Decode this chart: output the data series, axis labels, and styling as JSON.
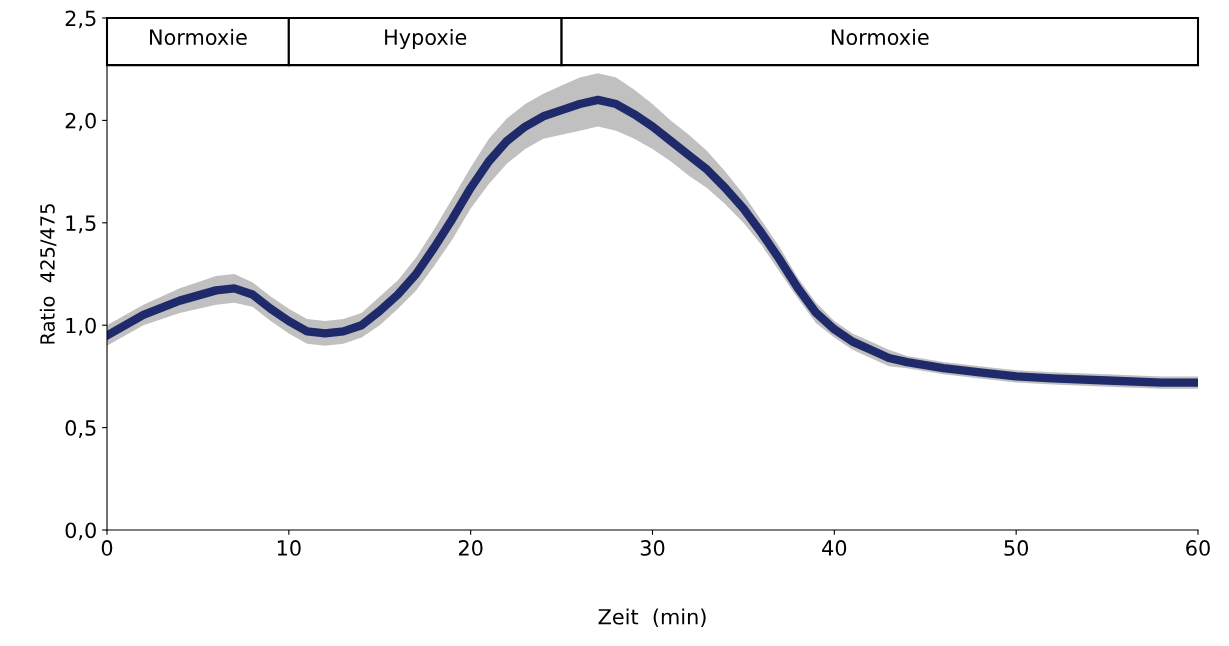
{
  "chart_data": {
    "type": "line",
    "xlabel": "Zeit  (min)",
    "ylabel": "Ratio  425/475",
    "x": [
      0,
      2,
      4,
      6,
      7,
      8,
      9,
      10,
      11,
      12,
      13,
      14,
      15,
      16,
      17,
      18,
      19,
      20,
      21,
      22,
      23,
      24,
      25,
      26,
      27,
      28,
      29,
      30,
      31,
      32,
      33,
      34,
      35,
      36,
      37,
      38,
      39,
      40,
      41,
      42,
      43,
      44,
      46,
      48,
      50,
      52,
      55,
      58,
      60
    ],
    "series": [
      {
        "color": "#1f2a6b",
        "values": [
          0.95,
          1.05,
          1.12,
          1.17,
          1.18,
          1.15,
          1.08,
          1.02,
          0.97,
          0.96,
          0.97,
          1.0,
          1.07,
          1.15,
          1.25,
          1.38,
          1.52,
          1.67,
          1.8,
          1.9,
          1.97,
          2.02,
          2.05,
          2.08,
          2.1,
          2.08,
          2.03,
          1.97,
          1.9,
          1.83,
          1.76,
          1.67,
          1.57,
          1.45,
          1.32,
          1.18,
          1.06,
          0.98,
          0.92,
          0.88,
          0.84,
          0.82,
          0.79,
          0.77,
          0.75,
          0.74,
          0.73,
          0.72,
          0.72
        ],
        "lower": [
          0.9,
          1.0,
          1.06,
          1.1,
          1.11,
          1.09,
          1.02,
          0.96,
          0.91,
          0.9,
          0.91,
          0.94,
          1.0,
          1.08,
          1.17,
          1.29,
          1.42,
          1.57,
          1.69,
          1.79,
          1.86,
          1.91,
          1.93,
          1.95,
          1.97,
          1.95,
          1.91,
          1.86,
          1.8,
          1.73,
          1.67,
          1.59,
          1.5,
          1.39,
          1.26,
          1.13,
          1.01,
          0.94,
          0.88,
          0.84,
          0.8,
          0.79,
          0.76,
          0.74,
          0.72,
          0.71,
          0.7,
          0.69,
          0.69
        ],
        "upper": [
          1.0,
          1.1,
          1.18,
          1.24,
          1.25,
          1.21,
          1.14,
          1.08,
          1.03,
          1.02,
          1.03,
          1.06,
          1.14,
          1.22,
          1.33,
          1.47,
          1.62,
          1.77,
          1.91,
          2.01,
          2.08,
          2.13,
          2.17,
          2.21,
          2.23,
          2.21,
          2.15,
          2.08,
          2.0,
          1.93,
          1.85,
          1.75,
          1.64,
          1.51,
          1.38,
          1.23,
          1.11,
          1.02,
          0.96,
          0.92,
          0.88,
          0.85,
          0.82,
          0.8,
          0.78,
          0.77,
          0.76,
          0.75,
          0.75
        ]
      }
    ],
    "xlim": [
      0,
      60
    ],
    "xticks": [
      0,
      10,
      20,
      30,
      40,
      50,
      60
    ],
    "ylim": [
      0,
      2.5
    ],
    "yticks": [
      {
        "value": 0,
        "label": "0,0"
      },
      {
        "value": 0.5,
        "label": "0,5"
      },
      {
        "value": 1.0,
        "label": "1,0"
      },
      {
        "value": 1.5,
        "label": "1,5"
      },
      {
        "value": 2.0,
        "label": "2,0"
      },
      {
        "value": 2.5,
        "label": "2,5"
      }
    ],
    "bands": [
      {
        "axis": "x",
        "from": 0,
        "to": 10,
        "label": "Normoxie",
        "color": "#ffffff"
      },
      {
        "axis": "x",
        "from": 10,
        "to": 25,
        "label": "Hypoxie",
        "color": "#ffffff"
      },
      {
        "axis": "x",
        "from": 25,
        "to": 60,
        "label": "Normoxie",
        "color": "#ffffff"
      }
    ],
    "grid": false,
    "legend": false
  }
}
